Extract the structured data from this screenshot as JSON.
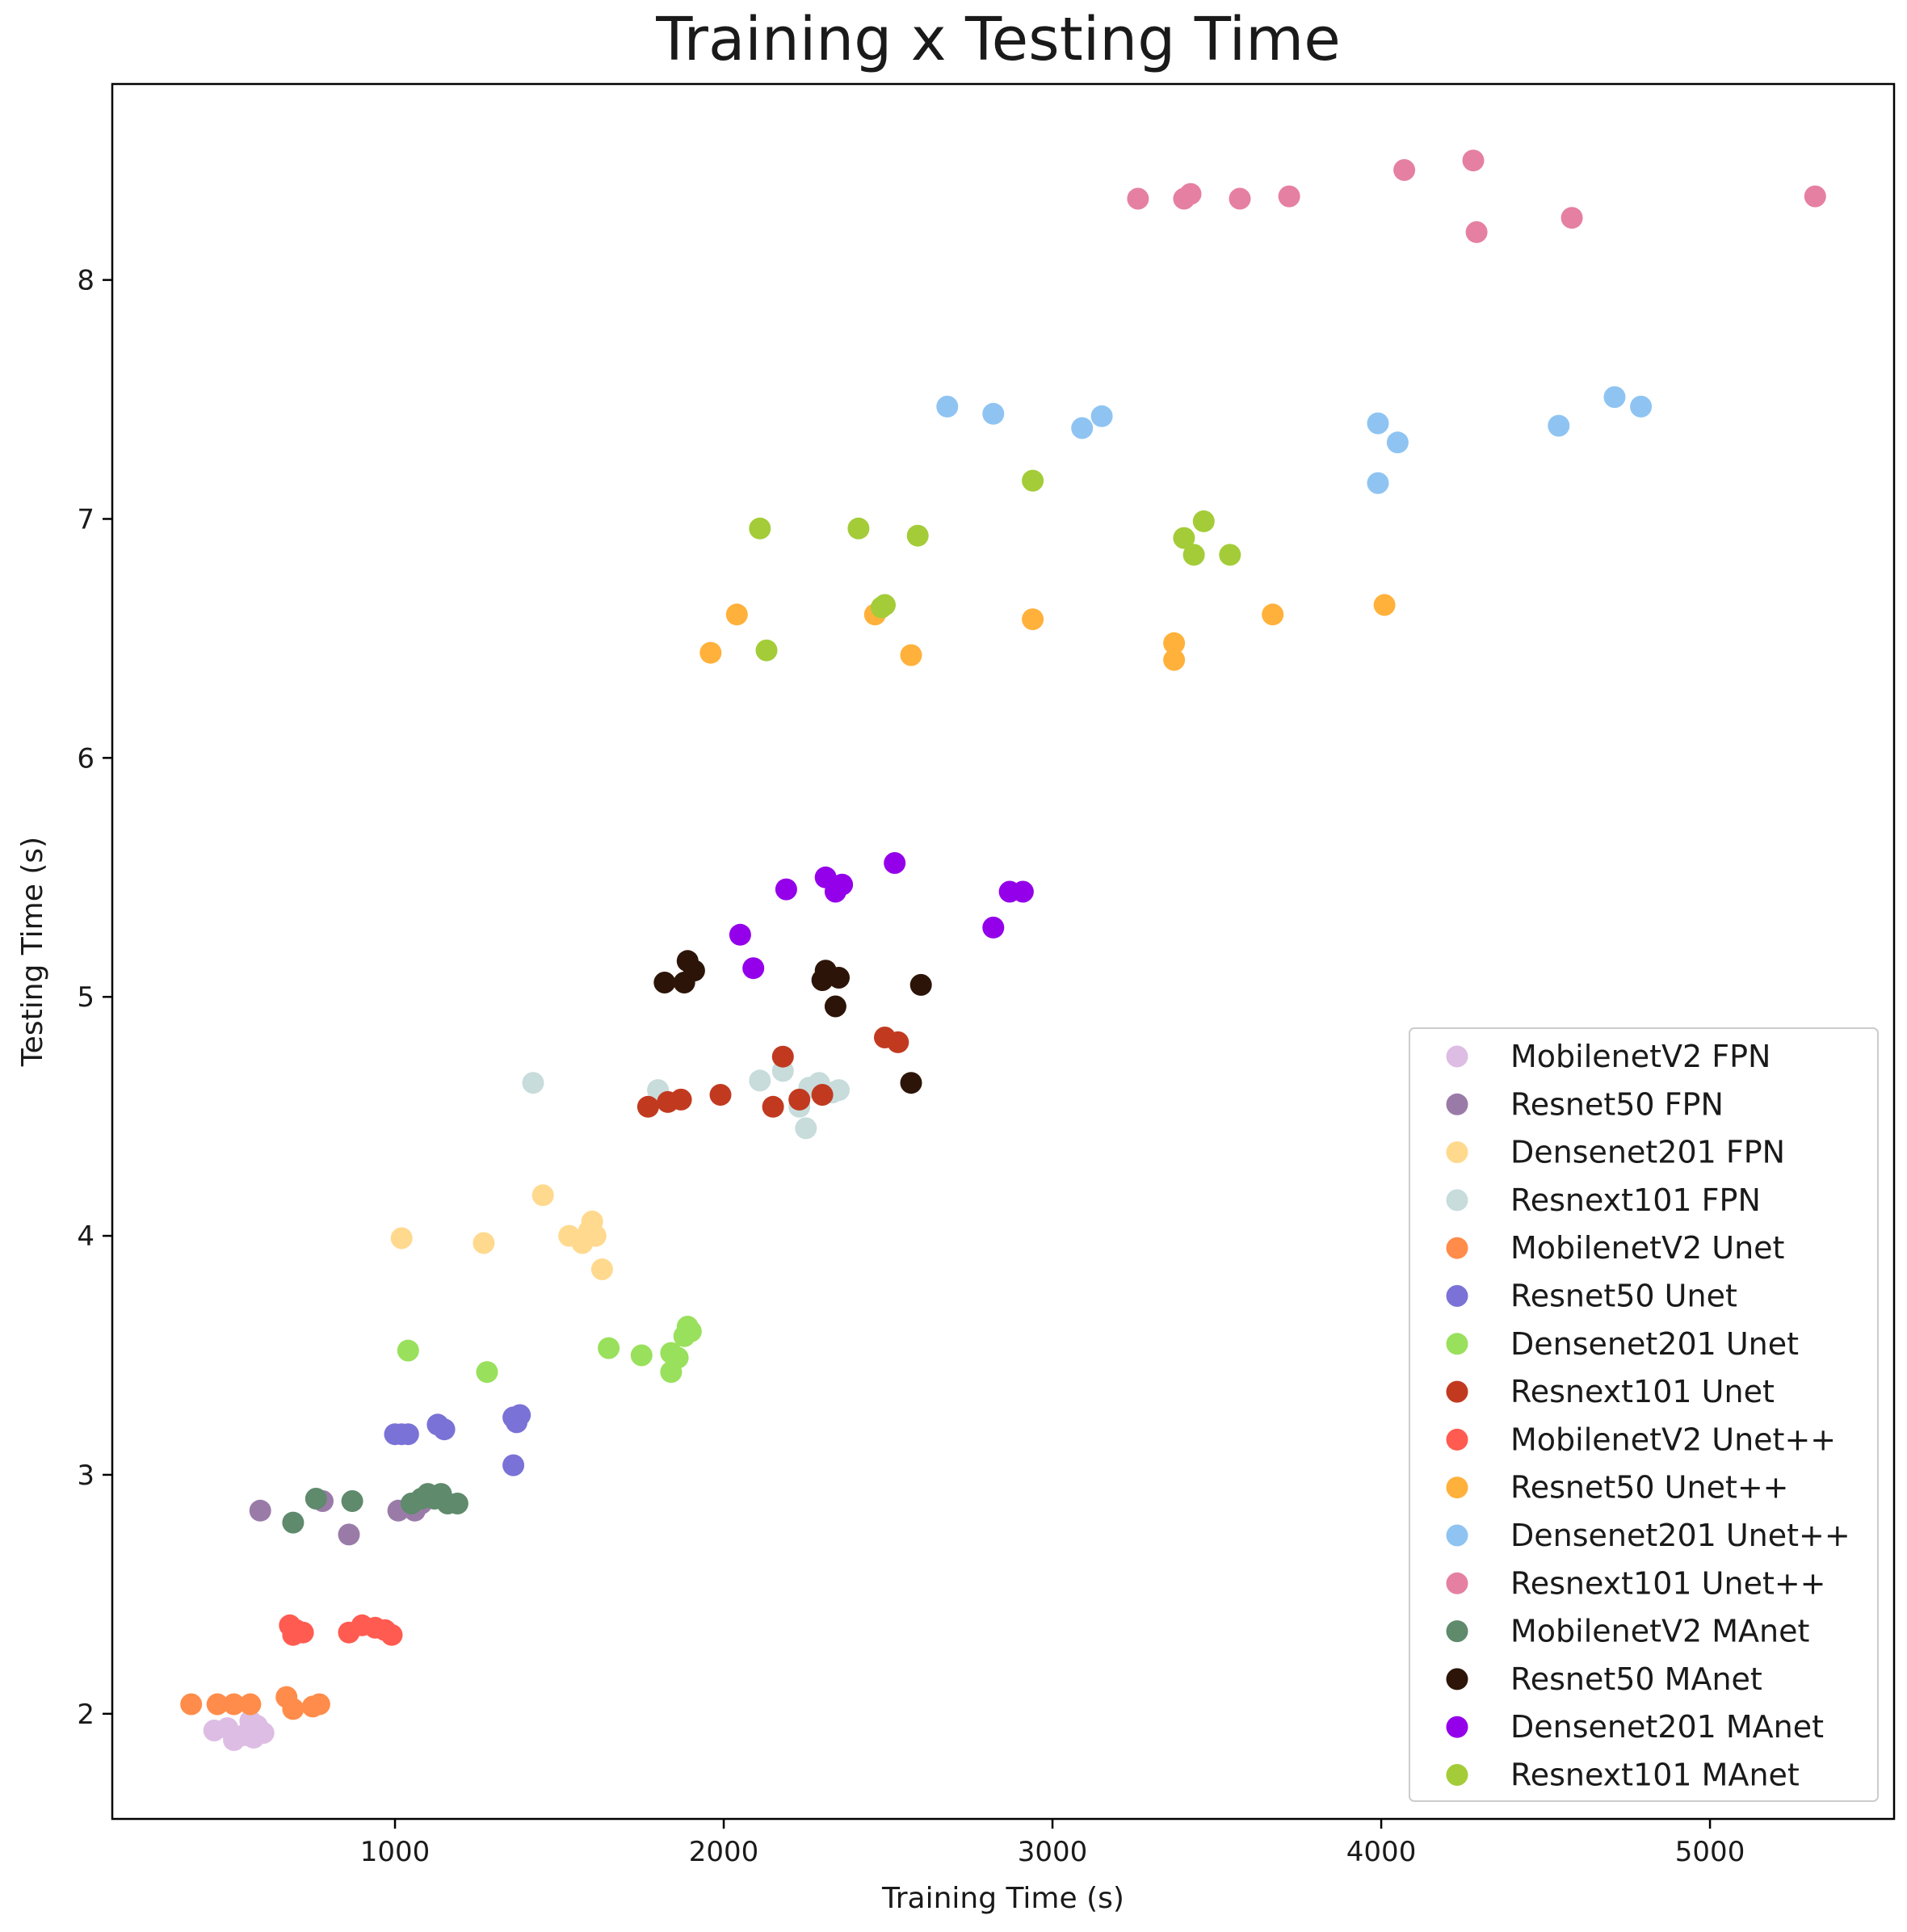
{
  "chart_data": {
    "type": "scatter",
    "title": "Training x Testing Time",
    "xlabel": "Training Time (s)",
    "ylabel": "Testing Time (s)",
    "xlim": [
      140,
      5560
    ],
    "ylim": [
      1.56,
      8.82
    ],
    "xticks": [
      1000,
      2000,
      3000,
      4000,
      5000
    ],
    "yticks": [
      2,
      3,
      4,
      5,
      6,
      7,
      8
    ],
    "grid": false,
    "legend_position": "lower-right",
    "series": [
      {
        "name": "MobilenetV2 FPN",
        "color": "#ddbde3",
        "points": [
          [
            450,
            1.93
          ],
          [
            510,
            1.89
          ],
          [
            540,
            1.91
          ],
          [
            570,
            1.9
          ],
          [
            580,
            1.95
          ],
          [
            600,
            1.92
          ],
          [
            560,
            1.97
          ],
          [
            490,
            1.94
          ]
        ]
      },
      {
        "name": "Resnet50 FPN",
        "color": "#9a7ba8",
        "points": [
          [
            590,
            2.85
          ],
          [
            780,
            2.89
          ],
          [
            860,
            2.75
          ],
          [
            1010,
            2.85
          ],
          [
            1060,
            2.85
          ],
          [
            1080,
            2.88
          ]
        ]
      },
      {
        "name": "Densenet201 FPN",
        "color": "#ffd98e",
        "points": [
          [
            1020,
            3.99
          ],
          [
            1270,
            3.97
          ],
          [
            1450,
            4.17
          ],
          [
            1530,
            4.0
          ],
          [
            1570,
            3.97
          ],
          [
            1590,
            4.02
          ],
          [
            1600,
            4.06
          ],
          [
            1610,
            4.0
          ],
          [
            1630,
            3.86
          ]
        ]
      },
      {
        "name": "Resnext101 FPN",
        "color": "#c7dcdb",
        "points": [
          [
            1420,
            4.64
          ],
          [
            1800,
            4.61
          ],
          [
            2110,
            4.65
          ],
          [
            2180,
            4.69
          ],
          [
            2230,
            4.54
          ],
          [
            2250,
            4.45
          ],
          [
            2260,
            4.62
          ],
          [
            2290,
            4.64
          ],
          [
            2330,
            4.6
          ],
          [
            2350,
            4.61
          ]
        ]
      },
      {
        "name": "MobilenetV2 Unet",
        "color": "#ff8c4a",
        "points": [
          [
            380,
            2.04
          ],
          [
            460,
            2.04
          ],
          [
            510,
            2.04
          ],
          [
            560,
            2.04
          ],
          [
            670,
            2.07
          ],
          [
            690,
            2.02
          ],
          [
            750,
            2.03
          ],
          [
            770,
            2.04
          ]
        ]
      },
      {
        "name": "Resnet50 Unet",
        "color": "#7a72d6",
        "points": [
          [
            1000,
            3.17
          ],
          [
            1020,
            3.17
          ],
          [
            1040,
            3.17
          ],
          [
            1130,
            3.21
          ],
          [
            1150,
            3.19
          ],
          [
            1360,
            3.24
          ],
          [
            1360,
            3.04
          ],
          [
            1370,
            3.22
          ],
          [
            1380,
            3.25
          ]
        ]
      },
      {
        "name": "Densenet201 Unet",
        "color": "#99e05c",
        "points": [
          [
            1040,
            3.52
          ],
          [
            1280,
            3.43
          ],
          [
            1650,
            3.53
          ],
          [
            1750,
            3.5
          ],
          [
            1840,
            3.51
          ],
          [
            1840,
            3.43
          ],
          [
            1860,
            3.49
          ],
          [
            1880,
            3.58
          ],
          [
            1890,
            3.62
          ],
          [
            1900,
            3.6
          ]
        ]
      },
      {
        "name": "Resnext101 Unet",
        "color": "#c13a20",
        "points": [
          [
            1770,
            4.54
          ],
          [
            1830,
            4.56
          ],
          [
            1870,
            4.57
          ],
          [
            1990,
            4.59
          ],
          [
            2150,
            4.54
          ],
          [
            2180,
            4.75
          ],
          [
            2230,
            4.57
          ],
          [
            2300,
            4.59
          ],
          [
            2490,
            4.83
          ],
          [
            2530,
            4.81
          ]
        ]
      },
      {
        "name": "MobilenetV2 Unet++",
        "color": "#ff5b50",
        "points": [
          [
            680,
            2.37
          ],
          [
            690,
            2.33
          ],
          [
            700,
            2.35
          ],
          [
            720,
            2.34
          ],
          [
            860,
            2.34
          ],
          [
            900,
            2.37
          ],
          [
            940,
            2.36
          ],
          [
            970,
            2.35
          ],
          [
            990,
            2.33
          ]
        ]
      },
      {
        "name": "Resnet50 Unet++",
        "color": "#ffb13b",
        "points": [
          [
            1960,
            6.44
          ],
          [
            2040,
            6.6
          ],
          [
            2460,
            6.6
          ],
          [
            2570,
            6.43
          ],
          [
            2940,
            6.58
          ],
          [
            3370,
            6.48
          ],
          [
            3370,
            6.41
          ],
          [
            3670,
            6.6
          ],
          [
            4010,
            6.64
          ]
        ]
      },
      {
        "name": "Densenet201 Unet++",
        "color": "#8fc4f2",
        "points": [
          [
            2680,
            7.47
          ],
          [
            2820,
            7.44
          ],
          [
            3090,
            7.38
          ],
          [
            3150,
            7.43
          ],
          [
            3990,
            7.4
          ],
          [
            3990,
            7.15
          ],
          [
            4050,
            7.32
          ],
          [
            4540,
            7.39
          ],
          [
            4710,
            7.51
          ],
          [
            4790,
            7.47
          ]
        ]
      },
      {
        "name": "Resnext101 Unet++",
        "color": "#e580a2",
        "points": [
          [
            3260,
            8.34
          ],
          [
            3400,
            8.34
          ],
          [
            3420,
            8.36
          ],
          [
            3570,
            8.34
          ],
          [
            3720,
            8.35
          ],
          [
            4070,
            8.46
          ],
          [
            4280,
            8.5
          ],
          [
            4290,
            8.2
          ],
          [
            4580,
            8.26
          ],
          [
            5320,
            8.35
          ]
        ]
      },
      {
        "name": "MobilenetV2 MAnet",
        "color": "#5f8a6c",
        "points": [
          [
            690,
            2.8
          ],
          [
            760,
            2.9
          ],
          [
            870,
            2.89
          ],
          [
            1050,
            2.88
          ],
          [
            1080,
            2.9
          ],
          [
            1100,
            2.92
          ],
          [
            1120,
            2.9
          ],
          [
            1140,
            2.92
          ],
          [
            1160,
            2.88
          ],
          [
            1190,
            2.88
          ]
        ]
      },
      {
        "name": "Resnet50 MAnet",
        "color": "#2c1508",
        "points": [
          [
            1820,
            5.06
          ],
          [
            1880,
            5.06
          ],
          [
            1890,
            5.15
          ],
          [
            1910,
            5.11
          ],
          [
            2300,
            5.07
          ],
          [
            2310,
            5.11
          ],
          [
            2340,
            4.96
          ],
          [
            2350,
            5.08
          ],
          [
            2570,
            4.64
          ],
          [
            2600,
            5.05
          ]
        ]
      },
      {
        "name": "Densenet201 MAnet",
        "color": "#9400ea",
        "points": [
          [
            2050,
            5.26
          ],
          [
            2090,
            5.12
          ],
          [
            2190,
            5.45
          ],
          [
            2310,
            5.5
          ],
          [
            2340,
            5.44
          ],
          [
            2360,
            5.47
          ],
          [
            2520,
            5.56
          ],
          [
            2820,
            5.29
          ],
          [
            2870,
            5.44
          ],
          [
            2910,
            5.44
          ]
        ]
      },
      {
        "name": "Resnext101 MAnet",
        "color": "#a3cc38",
        "points": [
          [
            2110,
            6.96
          ],
          [
            2130,
            6.45
          ],
          [
            2410,
            6.96
          ],
          [
            2480,
            6.63
          ],
          [
            2490,
            6.64
          ],
          [
            2590,
            6.93
          ],
          [
            2940,
            7.16
          ],
          [
            3400,
            6.92
          ],
          [
            3430,
            6.85
          ],
          [
            3460,
            6.99
          ],
          [
            3540,
            6.85
          ]
        ]
      }
    ]
  }
}
